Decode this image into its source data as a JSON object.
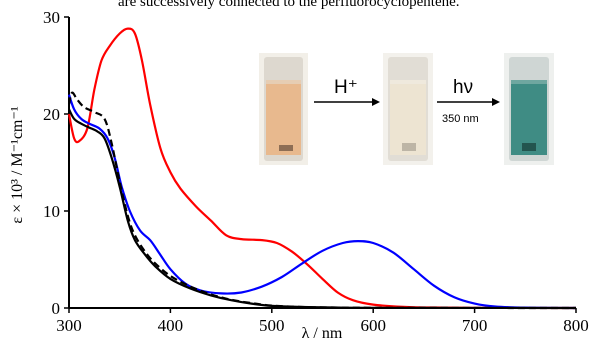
{
  "caption_fragment": "are successively connected to the perfluorocyclopentene.",
  "chart_data": {
    "type": "line",
    "xlabel": "λ / nm",
    "ylabel": "ε × 10³ / M⁻¹cm⁻¹",
    "xlim": [
      300,
      800
    ],
    "ylim": [
      0,
      30
    ],
    "x_ticks": [
      "300",
      "400",
      "500",
      "600",
      "700",
      "800"
    ],
    "y_ticks": [
      "0",
      "10",
      "20",
      "30"
    ],
    "grid": false,
    "legend": "none",
    "series": [
      {
        "color": "#ff0000",
        "style": "solid",
        "points": [
          [
            300,
            20.0
          ],
          [
            305,
            17.5
          ],
          [
            310,
            17.2
          ],
          [
            318,
            18.5
          ],
          [
            325,
            22.5
          ],
          [
            332,
            25.5
          ],
          [
            340,
            27.0
          ],
          [
            350,
            28.3
          ],
          [
            358,
            28.8
          ],
          [
            365,
            28.3
          ],
          [
            372,
            25.5
          ],
          [
            380,
            21.0
          ],
          [
            390,
            16.5
          ],
          [
            400,
            14.0
          ],
          [
            410,
            12.3
          ],
          [
            425,
            10.5
          ],
          [
            440,
            9.0
          ],
          [
            455,
            7.5
          ],
          [
            470,
            7.1
          ],
          [
            490,
            7.0
          ],
          [
            505,
            6.7
          ],
          [
            520,
            5.8
          ],
          [
            535,
            4.5
          ],
          [
            550,
            3.0
          ],
          [
            565,
            1.6
          ],
          [
            580,
            0.8
          ],
          [
            600,
            0.35
          ],
          [
            630,
            0.12
          ],
          [
            660,
            0.05
          ],
          [
            700,
            0.02
          ],
          [
            800,
            0.0
          ]
        ]
      },
      {
        "color": "#0000ff",
        "style": "solid",
        "points": [
          [
            300,
            22.0
          ],
          [
            305,
            20.5
          ],
          [
            312,
            19.5
          ],
          [
            320,
            19.0
          ],
          [
            330,
            18.5
          ],
          [
            338,
            17.5
          ],
          [
            345,
            15.5
          ],
          [
            352,
            12.5
          ],
          [
            360,
            10.0
          ],
          [
            370,
            8.0
          ],
          [
            380,
            7.0
          ],
          [
            390,
            5.5
          ],
          [
            400,
            4.0
          ],
          [
            415,
            2.5
          ],
          [
            430,
            1.8
          ],
          [
            450,
            1.5
          ],
          [
            470,
            1.6
          ],
          [
            490,
            2.2
          ],
          [
            510,
            3.2
          ],
          [
            530,
            4.6
          ],
          [
            550,
            5.9
          ],
          [
            570,
            6.7
          ],
          [
            585,
            6.9
          ],
          [
            600,
            6.7
          ],
          [
            620,
            5.7
          ],
          [
            640,
            4.0
          ],
          [
            660,
            2.3
          ],
          [
            680,
            1.1
          ],
          [
            700,
            0.45
          ],
          [
            720,
            0.15
          ],
          [
            750,
            0.04
          ],
          [
            800,
            0.0
          ]
        ]
      },
      {
        "color": "#000000",
        "style": "solid",
        "points": [
          [
            300,
            20.5
          ],
          [
            305,
            19.5
          ],
          [
            312,
            19.0
          ],
          [
            320,
            18.6
          ],
          [
            328,
            18.2
          ],
          [
            335,
            17.5
          ],
          [
            342,
            15.5
          ],
          [
            350,
            12.5
          ],
          [
            358,
            9.0
          ],
          [
            365,
            7.0
          ],
          [
            375,
            5.5
          ],
          [
            385,
            4.3
          ],
          [
            400,
            3.0
          ],
          [
            420,
            2.0
          ],
          [
            440,
            1.3
          ],
          [
            460,
            0.8
          ],
          [
            480,
            0.45
          ],
          [
            500,
            0.22
          ],
          [
            530,
            0.1
          ],
          [
            560,
            0.05
          ],
          [
            600,
            0.02
          ],
          [
            800,
            0.0
          ]
        ]
      },
      {
        "color": "#000000",
        "style": "dashed",
        "points": [
          [
            300,
            21.0
          ],
          [
            303,
            22.2
          ],
          [
            308,
            21.5
          ],
          [
            315,
            20.7
          ],
          [
            325,
            20.2
          ],
          [
            335,
            19.5
          ],
          [
            342,
            17.0
          ],
          [
            350,
            13.0
          ],
          [
            358,
            9.5
          ],
          [
            365,
            7.5
          ],
          [
            375,
            5.8
          ],
          [
            385,
            4.6
          ],
          [
            400,
            3.3
          ],
          [
            420,
            2.2
          ],
          [
            440,
            1.4
          ],
          [
            460,
            0.85
          ],
          [
            480,
            0.5
          ],
          [
            500,
            0.25
          ],
          [
            530,
            0.1
          ],
          [
            560,
            0.05
          ],
          [
            600,
            0.02
          ],
          [
            800,
            0.0
          ]
        ]
      }
    ],
    "annotations": {
      "arrow1_label": "H⁺",
      "arrow2_label": "hν",
      "arrow2_sublabel": "350 nm",
      "vial_colors": [
        "#e8b98e",
        "#ede4d2",
        "#3f8c84"
      ]
    }
  }
}
